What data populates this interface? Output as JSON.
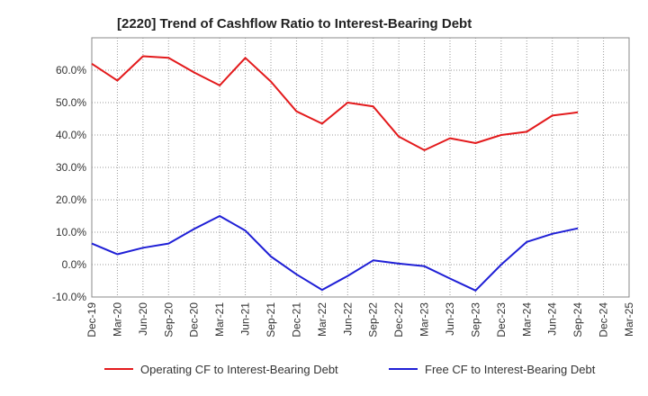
{
  "chart_data": {
    "type": "line",
    "title": "[2220]  Trend of Cashflow Ratio to Interest-Bearing Debt",
    "xlabel": "",
    "ylabel": "",
    "ylim": [
      -10,
      70
    ],
    "y_ticks": [
      "-10.0%",
      "0.0%",
      "10.0%",
      "20.0%",
      "30.0%",
      "40.0%",
      "50.0%",
      "60.0%"
    ],
    "y_tick_values": [
      -10,
      0,
      10,
      20,
      30,
      40,
      50,
      60
    ],
    "x_tick_labels": [
      "Dec-19",
      "Mar-20",
      "Jun-20",
      "Sep-20",
      "Dec-20",
      "Mar-21",
      "Jun-21",
      "Sep-21",
      "Dec-21",
      "Mar-22",
      "Jun-22",
      "Sep-22",
      "Dec-22",
      "Mar-23",
      "Jun-23",
      "Sep-23",
      "Dec-23",
      "Mar-24",
      "Jun-24",
      "Sep-24",
      "Dec-24",
      "Mar-25"
    ],
    "grid": true,
    "legend_position": "bottom",
    "series": [
      {
        "name": "Operating CF to Interest-Bearing Debt",
        "color": "#e31a1c",
        "values": [
          62.0,
          56.8,
          64.3,
          63.8,
          59.3,
          55.3,
          63.8,
          56.5,
          47.3,
          43.5,
          50.0,
          48.8,
          39.5,
          35.3,
          39.0,
          37.5,
          40.0,
          41.0,
          46.0,
          47.0
        ]
      },
      {
        "name": "Free CF to Interest-Bearing Debt",
        "color": "#1f1fd6",
        "values": [
          6.5,
          3.2,
          5.2,
          6.5,
          11.0,
          15.0,
          10.5,
          2.5,
          -3.0,
          -7.8,
          -3.5,
          1.3,
          0.3,
          -0.5,
          -4.3,
          -8.0,
          0.0,
          7.0,
          9.5,
          11.2
        ]
      }
    ]
  }
}
